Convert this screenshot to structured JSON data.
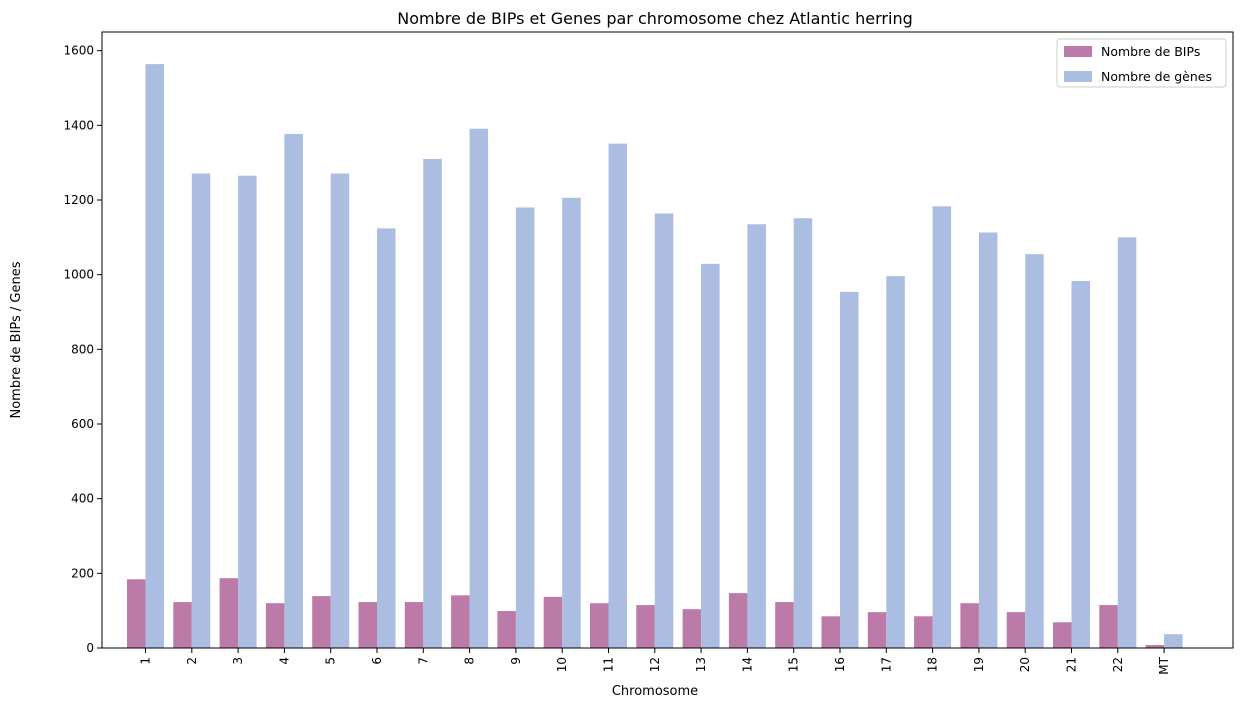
{
  "chart_data": {
    "type": "bar",
    "title": "Nombre de BIPs et Genes par chromosome chez Atlantic herring",
    "xlabel": "Chromosome",
    "ylabel": "Nombre de BIPs / Genes",
    "ylim": [
      0,
      1650
    ],
    "yticks": [
      0,
      200,
      400,
      600,
      800,
      1000,
      1200,
      1400,
      1600
    ],
    "categories": [
      "1",
      "2",
      "3",
      "4",
      "5",
      "6",
      "7",
      "8",
      "9",
      "10",
      "11",
      "12",
      "13",
      "14",
      "15",
      "16",
      "17",
      "18",
      "19",
      "20",
      "21",
      "22",
      "MT"
    ],
    "series": [
      {
        "name": "Nombre de BIPs",
        "color": "#bc7aa8",
        "values": [
          184,
          123,
          187,
          120,
          139,
          123,
          123,
          141,
          99,
          137,
          120,
          115,
          104,
          147,
          123,
          85,
          96,
          85,
          120,
          96,
          69,
          115,
          8
        ]
      },
      {
        "name": "Nombre de gènes",
        "color": "#abbde0",
        "values": [
          1564,
          1271,
          1265,
          1377,
          1271,
          1124,
          1310,
          1391,
          1180,
          1206,
          1351,
          1164,
          1029,
          1135,
          1151,
          954,
          996,
          1183,
          1113,
          1055,
          983,
          1100,
          37
        ]
      }
    ],
    "legend": "top-right",
    "grid": false
  }
}
